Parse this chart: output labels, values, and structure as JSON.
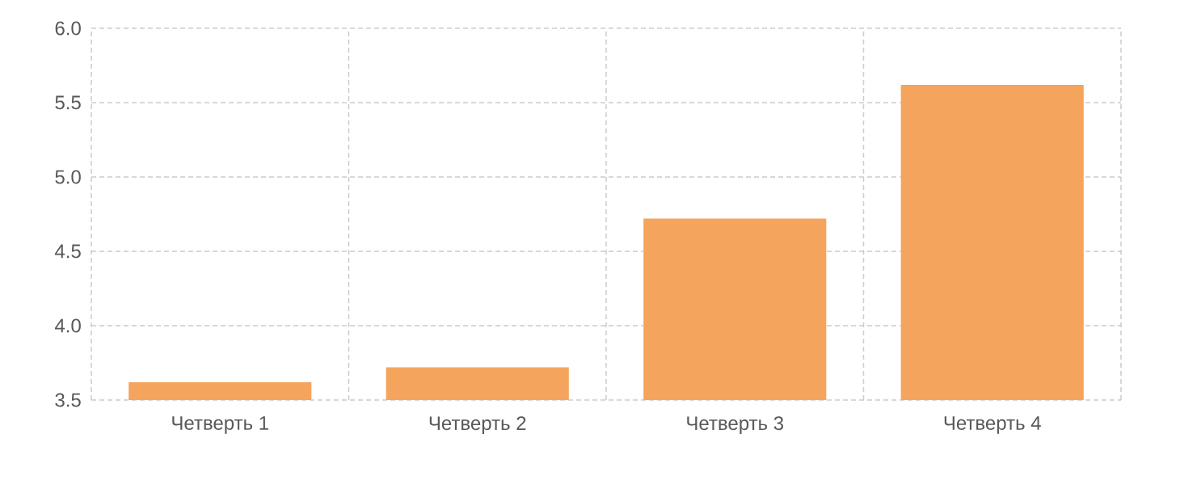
{
  "chart_data": {
    "type": "bar",
    "categories": [
      "Четверть 1",
      "Четверть 2",
      "Четверть 3",
      "Четверть 4"
    ],
    "values": [
      3.62,
      3.72,
      4.72,
      5.62
    ],
    "color": "#f5a45d",
    "ylim": [
      3.5,
      6.0
    ],
    "yticks": [
      3.5,
      {
        "value": 4,
        "label": "4.0"
      },
      4.5,
      {
        "value": 5,
        "label": "5.0"
      },
      5.5,
      {
        "value": 6,
        "label": "6.0"
      }
    ],
    "grid": true
  }
}
